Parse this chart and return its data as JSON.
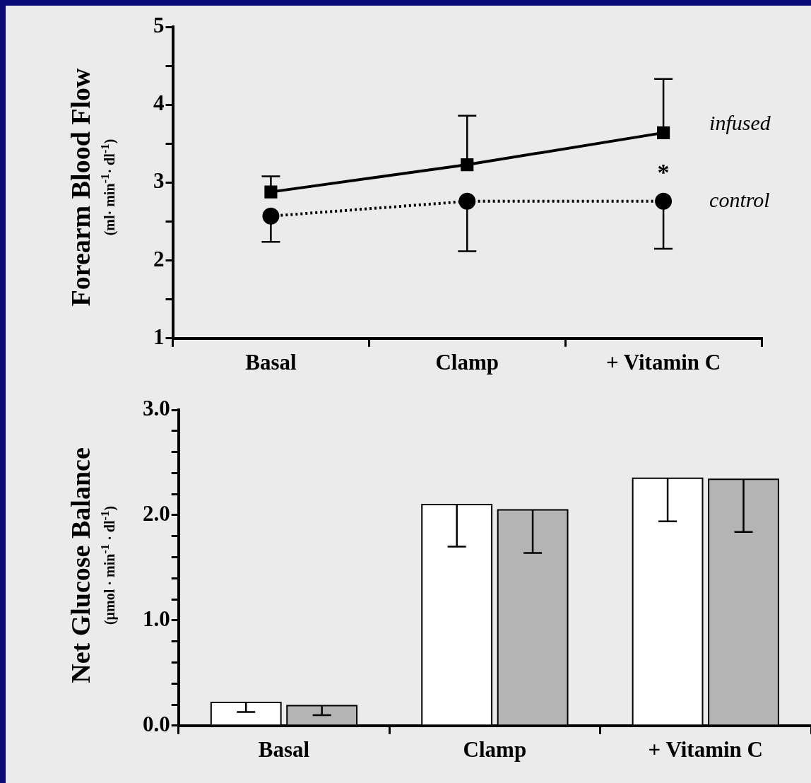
{
  "chart_data": [
    {
      "type": "line",
      "ylabel": "Forearm Blood Flow (ml· min$^{-1}$· dl$^{-1}$)",
      "categories": [
        "Basal",
        "Clamp",
        "+ Vitamin C"
      ],
      "series": [
        {
          "name": "infused",
          "color": "#000000",
          "marker": "square",
          "line_style": "solid",
          "values": [
            2.88,
            3.23,
            3.64
          ],
          "errors": [
            [
              2.88,
              3.08
            ],
            [
              3.23,
              3.86
            ],
            [
              3.64,
              4.33
            ]
          ]
        },
        {
          "name": "control",
          "color": "#000000",
          "marker": "circle",
          "line_style": "dotted",
          "values": [
            2.57,
            2.76,
            2.76
          ],
          "errors": [
            [
              2.24,
              2.57
            ],
            [
              2.12,
              2.76
            ],
            [
              2.15,
              2.76
            ]
          ]
        }
      ],
      "ylim": [
        1,
        5
      ],
      "yticks": [
        1,
        {
          "value": 1.5,
          "label": null
        },
        2,
        {
          "value": 2.5,
          "label": null
        },
        3,
        {
          "value": 3.5,
          "label": null
        },
        4,
        {
          "value": 4.5,
          "label": null
        },
        5
      ],
      "grid": false,
      "annotations": [
        "*"
      ]
    },
    {
      "type": "bar",
      "ylabel": "Net Glucose Balance (µmol · min$^{-1}$ · dl$^{-1}$)",
      "categories": [
        "Basal",
        "Clamp",
        "+ Vitamin C"
      ],
      "series": [
        {
          "color": "#ffffff",
          "values": [
            0.22,
            2.1,
            2.35
          ],
          "errors": [
            [
              0.13,
              0.22
            ],
            [
              1.7,
              2.1
            ],
            [
              1.94,
              2.35
            ]
          ]
        },
        {
          "color": "#b4b4b4",
          "values": [
            0.19,
            2.05,
            2.34
          ],
          "errors": [
            [
              0.1,
              0.19
            ],
            [
              1.64,
              2.05
            ],
            [
              1.84,
              2.34
            ]
          ]
        }
      ],
      "ylim": [
        0,
        3
      ],
      "yticks": [
        {
          "value": 0,
          "label": "0.0"
        },
        {
          "value": 0.2,
          "label": null
        },
        {
          "value": 0.4,
          "label": null
        },
        {
          "value": 0.6,
          "label": null
        },
        {
          "value": 0.8,
          "label": null
        },
        {
          "value": 1,
          "label": "1.0"
        },
        {
          "value": 1.2,
          "label": null
        },
        {
          "value": 1.4,
          "label": null
        },
        {
          "value": 1.6,
          "label": null
        },
        {
          "value": 1.8,
          "label": null
        },
        {
          "value": 2,
          "label": "2.0"
        },
        {
          "value": 2.2,
          "label": null
        },
        {
          "value": 2.4,
          "label": null
        },
        {
          "value": 2.6,
          "label": null
        },
        {
          "value": 2.8,
          "label": null
        },
        {
          "value": 3,
          "label": "3.0"
        }
      ],
      "grid": false
    }
  ]
}
